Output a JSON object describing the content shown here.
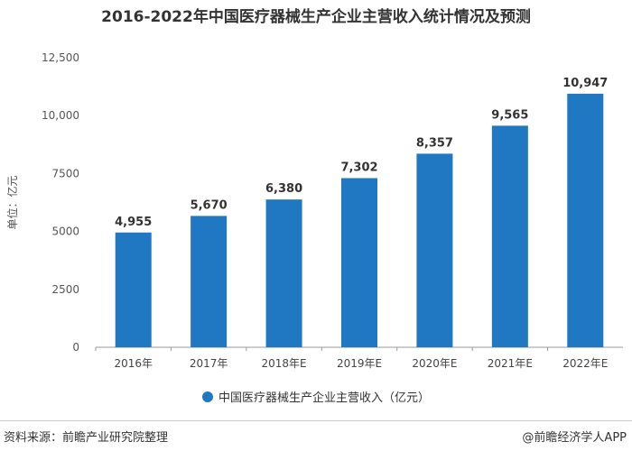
{
  "chart_data": {
    "type": "bar",
    "title": "2016-2022年中国医疗器械生产企业主营收入统计情况及预测",
    "ylabel": "单位：亿元",
    "xlabel": "",
    "categories": [
      "2016年",
      "2017年",
      "2018年E",
      "2019年E",
      "2020年E",
      "2021年E",
      "2022年E"
    ],
    "series": [
      {
        "name": "中国医疗器械生产企业主营收入（亿元）",
        "values": [
          4955,
          5670,
          6380,
          7302,
          8357,
          9565,
          10947
        ],
        "labels": [
          "4,955",
          "5,670",
          "6,380",
          "7,302",
          "8,357",
          "9,565",
          "10,947"
        ],
        "color": "#1f78c1"
      }
    ],
    "ylim": [
      0,
      12500
    ],
    "yticks": [
      0,
      2500,
      5000,
      7500,
      10000,
      12500
    ],
    "ytick_labels": [
      "0",
      "2500",
      "5000",
      "7500",
      "10,000",
      "12,500"
    ],
    "grid": false,
    "legend_position": "bottom"
  },
  "footer": {
    "source": "资料来源：前瞻产业研究院整理",
    "credit": "@前瞻经济学人APP"
  }
}
